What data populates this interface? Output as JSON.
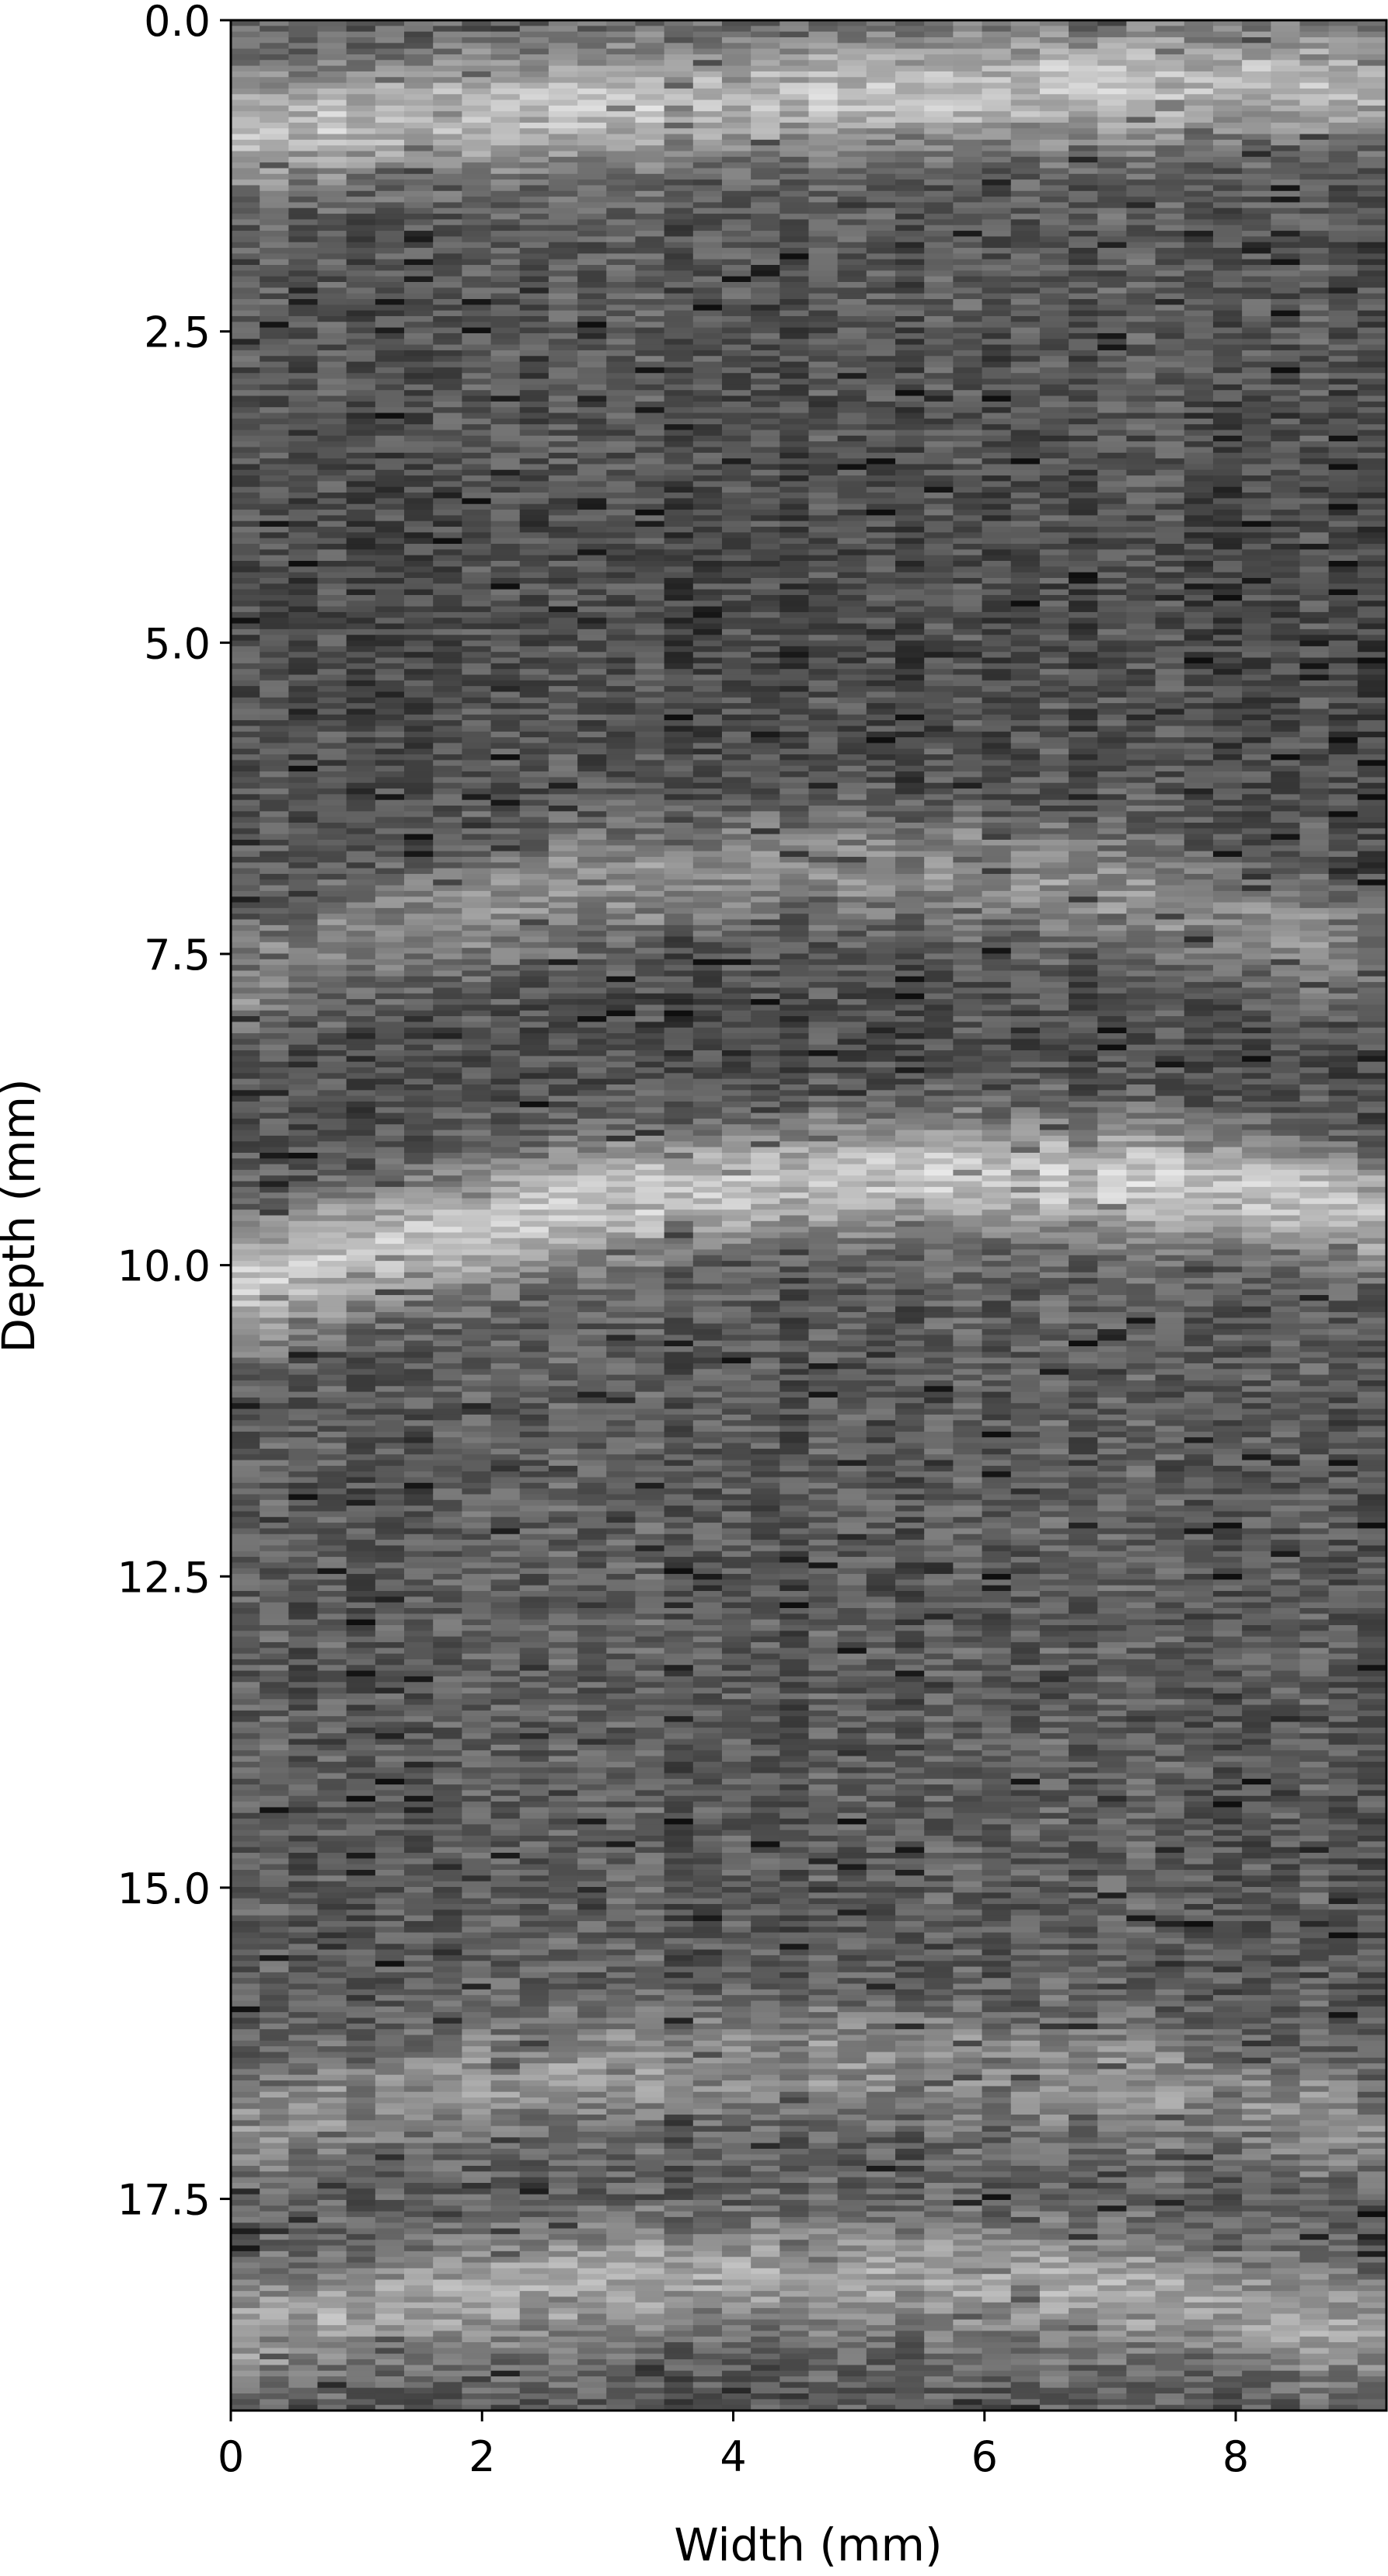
{
  "chart_data": {
    "type": "heatmap",
    "title": "",
    "xlabel": "Width (mm)",
    "ylabel": "Depth (mm)",
    "xlim": [
      0,
      9.2
    ],
    "ylim": [
      19.2,
      0
    ],
    "x_ticks": [
      {
        "value": 0,
        "label": "0"
      },
      {
        "value": 2,
        "label": "2"
      },
      {
        "value": 4,
        "label": "4"
      },
      {
        "value": 6,
        "label": "6"
      },
      {
        "value": 8,
        "label": "8"
      }
    ],
    "y_ticks": [
      {
        "value": 0.0,
        "label": "0.0"
      },
      {
        "value": 2.5,
        "label": "2.5"
      },
      {
        "value": 5.0,
        "label": "5.0"
      },
      {
        "value": 7.5,
        "label": "7.5"
      },
      {
        "value": 10.0,
        "label": "10.0"
      },
      {
        "value": 12.5,
        "label": "12.5"
      },
      {
        "value": 15.0,
        "label": "15.0"
      },
      {
        "value": 17.5,
        "label": "17.5"
      }
    ],
    "colormap": "gray",
    "grid": false,
    "legend": "none",
    "bright_bands": [
      {
        "depth_left": 0.9,
        "depth_right": 0.5,
        "sag": 0.1,
        "intensity": 0.38
      },
      {
        "depth_left": 7.8,
        "depth_right": 7.6,
        "sag": 0.9,
        "intensity": 0.22
      },
      {
        "depth_left": 10.2,
        "depth_right": 9.6,
        "sag": 0.6,
        "intensity": 0.42
      },
      {
        "depth_left": 17.0,
        "depth_right": 17.0,
        "sag": 0.6,
        "intensity": 0.2
      },
      {
        "depth_left": 18.6,
        "depth_right": 18.6,
        "sag": 0.5,
        "intensity": 0.28
      }
    ]
  }
}
